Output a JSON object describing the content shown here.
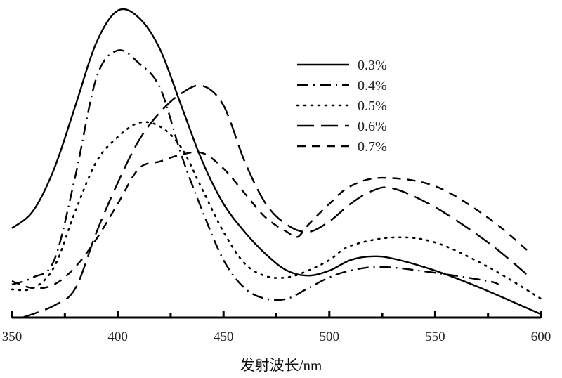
{
  "chart_data": {
    "type": "line",
    "title": "",
    "xlabel": "发射波长/nm",
    "ylabel": "",
    "xlim": [
      350,
      600
    ],
    "ylim": [
      0,
      100
    ],
    "xticks": [
      350,
      400,
      450,
      500,
      550,
      600
    ],
    "tick_labels": [
      "350",
      "400",
      "450",
      "500",
      "550",
      "600"
    ],
    "grid": false,
    "legend_position": "top-right",
    "series": [
      {
        "name": "0.3%",
        "style": "solid",
        "x": [
          350,
          360,
          370,
          380,
          390,
          400,
          410,
          420,
          430,
          440,
          450,
          460,
          470,
          480,
          490,
          500,
          510,
          520,
          530,
          550,
          570,
          600
        ],
        "y": [
          28.9,
          34.5,
          48.2,
          68.6,
          89.1,
          99.3,
          97.0,
          86.8,
          68.6,
          50.5,
          36.8,
          27.7,
          20.5,
          15.2,
          13.6,
          15.2,
          18.6,
          19.8,
          19.1,
          15.2,
          10.0,
          1.1
        ]
      },
      {
        "name": "0.4%",
        "style": "dashdot",
        "x": [
          350,
          360,
          370,
          380,
          390,
          400,
          410,
          420,
          430,
          440,
          450,
          460,
          470,
          480,
          490,
          500,
          510,
          525,
          550,
          575,
          580
        ],
        "y": [
          10.7,
          13.0,
          18.6,
          45.9,
          77.7,
          86.4,
          82.3,
          74.3,
          52.7,
          34.5,
          18.6,
          9.5,
          6.1,
          6.1,
          9.5,
          13.0,
          15.2,
          16.4,
          14.5,
          11.8,
          10.7
        ]
      },
      {
        "name": "0.5%",
        "style": "dotted",
        "x": [
          350,
          360,
          370,
          380,
          390,
          400,
          410,
          420,
          430,
          440,
          450,
          460,
          470,
          480,
          490,
          500,
          510,
          530,
          550,
          575,
          600
        ],
        "y": [
          9.1,
          9.5,
          16.4,
          34.5,
          50.5,
          58.4,
          63.0,
          61.8,
          55.0,
          41.4,
          27.7,
          17.5,
          13.4,
          13.0,
          15.2,
          18.6,
          23.2,
          25.9,
          24.3,
          16.4,
          6.1
        ]
      },
      {
        "name": "0.6%",
        "style": "longdash",
        "x": [
          355,
          370,
          380,
          390,
          400,
          410,
          420,
          430,
          440,
          450,
          460,
          470,
          480,
          490,
          500,
          510,
          520,
          530,
          550,
          575,
          595
        ],
        "y": [
          0,
          3.9,
          9.5,
          27.7,
          43.6,
          57.3,
          66.4,
          72.5,
          75.0,
          68.6,
          50.5,
          36.8,
          30.0,
          27.7,
          31.1,
          36.8,
          40.9,
          41.8,
          35.7,
          24.3,
          13.0
        ]
      },
      {
        "name": "0.7%",
        "style": "dashed",
        "x": [
          350,
          360,
          370,
          380,
          390,
          400,
          410,
          420,
          430,
          440,
          450,
          460,
          470,
          480,
          485,
          490,
          500,
          510,
          525,
          550,
          575,
          595
        ],
        "y": [
          11.8,
          9.5,
          10.7,
          16.4,
          25.5,
          36.8,
          48.2,
          50.5,
          52.7,
          53.2,
          48.2,
          40.2,
          32.3,
          27.7,
          26.1,
          30.0,
          36.8,
          42.5,
          45.2,
          42.5,
          32.3,
          20.9
        ]
      }
    ]
  }
}
